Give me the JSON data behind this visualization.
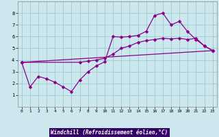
{
  "xlabel": "Windchill (Refroidissement éolien,°C)",
  "bg_color": "#cce8ee",
  "line_color": "#880088",
  "grid_color": "#99cccc",
  "xlabel_bg": "#330066",
  "xlabel_color": "#ffffff",
  "xlim": [
    -0.5,
    23.5
  ],
  "ylim": [
    0,
    9
  ],
  "xticks": [
    0,
    1,
    2,
    3,
    4,
    5,
    6,
    7,
    8,
    9,
    10,
    11,
    12,
    13,
    14,
    15,
    16,
    17,
    18,
    19,
    20,
    21,
    22,
    23
  ],
  "yticks": [
    1,
    2,
    3,
    4,
    5,
    6,
    7,
    8
  ],
  "series1_x": [
    0,
    1,
    2,
    3,
    4,
    5,
    6,
    7,
    8,
    9,
    10,
    11,
    12,
    13,
    14,
    15,
    16,
    17,
    18,
    19,
    20,
    21,
    22,
    23
  ],
  "series1_y": [
    3.8,
    1.7,
    2.6,
    2.4,
    2.1,
    1.7,
    1.3,
    2.3,
    3.0,
    3.5,
    3.85,
    6.0,
    5.95,
    6.0,
    6.1,
    6.45,
    7.8,
    8.0,
    7.0,
    7.3,
    6.4,
    5.75,
    5.2,
    4.8
  ],
  "series2_x": [
    0,
    7,
    8,
    9,
    10,
    11,
    12,
    13,
    14,
    15,
    16,
    17,
    18,
    19,
    20,
    21,
    22,
    23
  ],
  "series2_y": [
    3.8,
    3.8,
    3.9,
    4.0,
    4.15,
    4.5,
    5.0,
    5.2,
    5.5,
    5.65,
    5.75,
    5.85,
    5.8,
    5.85,
    5.75,
    5.85,
    5.2,
    4.8
  ],
  "series3_x": [
    0,
    23
  ],
  "series3_y": [
    3.8,
    4.8
  ]
}
